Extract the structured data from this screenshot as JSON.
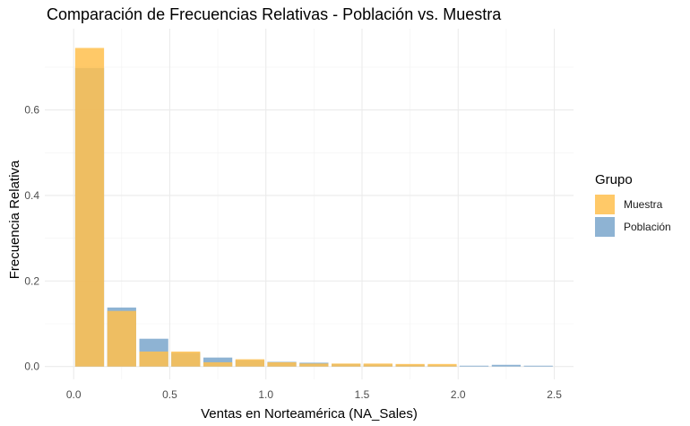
{
  "chart_data": {
    "type": "bar",
    "title": "Comparación de Frecuencias Relativas - Población vs. Muestra",
    "xlabel": "Ventas en Norteamérica (NA_Sales)",
    "ylabel": "Frecuencia Relativa",
    "x_ticks": [
      0.0,
      0.5,
      1.0,
      1.5,
      2.0,
      2.5
    ],
    "x_tick_labels": [
      "0.0",
      "0.5",
      "1.0",
      "1.5",
      "2.0",
      "2.5"
    ],
    "y_ticks": [
      0.0,
      0.2,
      0.4,
      0.6
    ],
    "y_tick_labels": [
      "0.0",
      "0.2",
      "0.4",
      "0.6"
    ],
    "xlim": [
      -0.15,
      2.6
    ],
    "ylim": [
      -0.03,
      0.79
    ],
    "bin_width": 0.167,
    "bin_centers": [
      0.083,
      0.25,
      0.417,
      0.583,
      0.75,
      0.917,
      1.083,
      1.25,
      1.417,
      1.583,
      1.75,
      1.917,
      2.083,
      2.25,
      2.417
    ],
    "grid": true,
    "legend_title": "Grupo",
    "legend_position": "right",
    "series": [
      {
        "name": "Muestra",
        "color": "#FFC04D",
        "opacity": 0.85,
        "values": [
          0.745,
          0.13,
          0.035,
          0.035,
          0.01,
          0.017,
          0.01,
          0.007,
          0.007,
          0.007,
          0.006,
          0.006,
          0.0,
          0.0,
          0.0
        ]
      },
      {
        "name": "Población",
        "color": "#7AA6CB",
        "opacity": 0.85,
        "values": [
          0.698,
          0.138,
          0.065,
          0.032,
          0.021,
          0.015,
          0.011,
          0.009,
          0.006,
          0.005,
          0.004,
          0.003,
          0.002,
          0.004,
          0.002
        ]
      }
    ]
  }
}
